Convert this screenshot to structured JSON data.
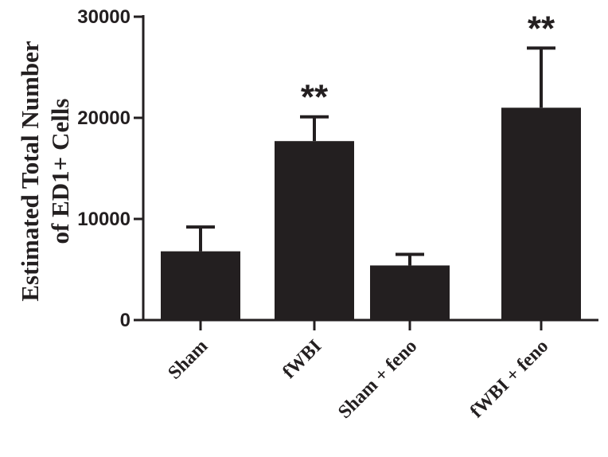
{
  "chart_data": {
    "type": "bar",
    "title": "",
    "xlabel": "",
    "ylabel_lines": [
      "Estimated Total Number",
      "of ED1+ Cells"
    ],
    "categories": [
      "Sham",
      "fWBI",
      "Sham + feno",
      "fWBI + feno"
    ],
    "values": [
      6800,
      17700,
      5400,
      21000
    ],
    "error_upper": [
      9200,
      20100,
      6500,
      26900
    ],
    "annotations": [
      "",
      "**",
      "",
      "**"
    ],
    "ylim": [
      0,
      30000
    ],
    "yticks": [
      0,
      10000,
      20000,
      30000
    ],
    "ytick_labels": [
      "0",
      "10000",
      "20000",
      "30000"
    ],
    "grid": false,
    "legend": "none",
    "bar_color": "#231f20"
  }
}
